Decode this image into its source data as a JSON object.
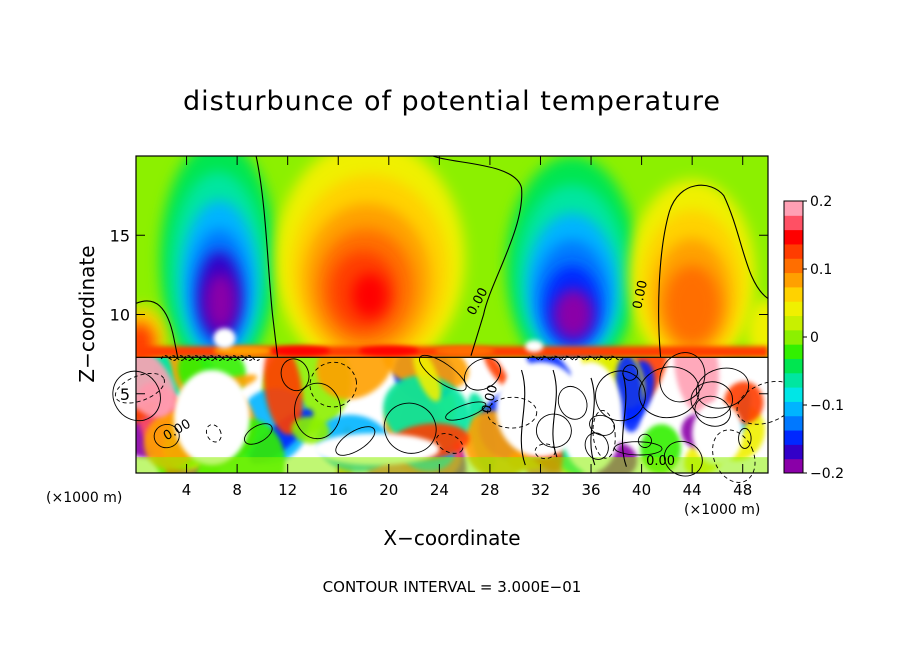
{
  "chart_data": {
    "type": "heatmap",
    "title": "disturbunce of potential temperature",
    "xlabel": "X−coordinate",
    "ylabel": "Z−coordinate",
    "x_unit_label": "(×1000 m)",
    "x_unit_label_right": "(×1000 m)",
    "footer": "CONTOUR INTERVAL = 3.000E−01",
    "xlim": [
      0,
      50
    ],
    "ylim": [
      0,
      20
    ],
    "x_ticks": [
      4,
      8,
      12,
      16,
      20,
      24,
      28,
      32,
      36,
      40,
      44,
      48
    ],
    "y_ticks": [
      5,
      10,
      15
    ],
    "contour_labels": [
      "0.00",
      "0.00",
      "0.00",
      "0.00",
      "0.00"
    ],
    "colorbar": {
      "min": -0.2,
      "max": 0.2,
      "tick_values": [
        0.2,
        0.1,
        0,
        -0.1,
        -0.2
      ],
      "tick_labels": [
        "0.2",
        "0.1",
        "0",
        "−0.1",
        "−0.2"
      ],
      "colors": [
        "#8a00a8",
        "#3200c8",
        "#0028ff",
        "#0078ff",
        "#00b4ff",
        "#00e6e6",
        "#00e6a0",
        "#00e650",
        "#32f000",
        "#8cf000",
        "#c8f000",
        "#f0f000",
        "#ffd200",
        "#ffa000",
        "#ff6e00",
        "#ff3c00",
        "#ff0000",
        "#ff5064",
        "#ffa0b4"
      ]
    },
    "upper_features": [
      {
        "x": 6.5,
        "z": 11.5,
        "value": -0.19
      },
      {
        "x": 18,
        "z": 11.5,
        "value": 0.13
      },
      {
        "x": 34.5,
        "z": 11,
        "value": -0.2
      },
      {
        "x": 44,
        "z": 11,
        "value": 0.12
      },
      {
        "x": 1,
        "z": 8.5,
        "value": 0.12
      },
      {
        "x": 25,
        "z": 15,
        "value": 0.05
      },
      {
        "x": 42,
        "z": 17,
        "value": 0.01
      }
    ]
  }
}
